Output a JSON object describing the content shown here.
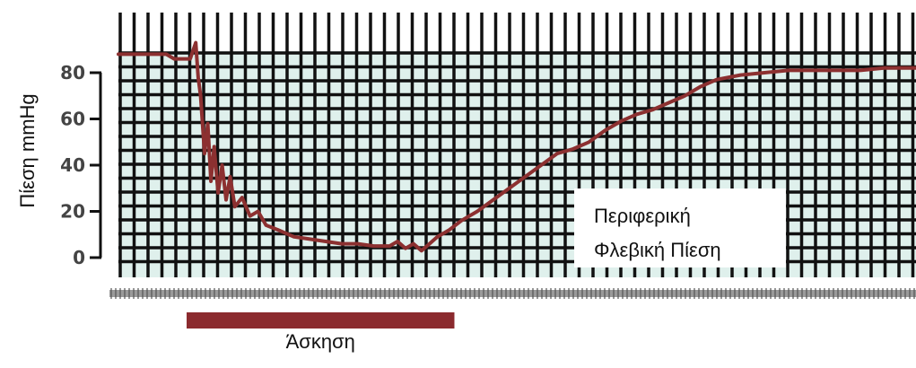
{
  "chart_data": {
    "type": "line",
    "ylabel": "Πίεση mmHg",
    "yticks": [
      0,
      20,
      40,
      60,
      80
    ],
    "ylim": [
      -8,
      98
    ],
    "xlim": [
      0,
      100
    ],
    "grid": true,
    "colors": {
      "grid_bg": "#dff0ec",
      "grid_line": "#111111",
      "series": "#8c3030",
      "exercise_bar": "#8b2a2e"
    },
    "series": [
      {
        "name": "Περιφερική Φλεβική Πίεση",
        "legend_lines": [
          "Περιφερική",
          "Φλεβική Πίεση"
        ],
        "x": [
          0,
          6,
          7,
          9,
          9.7,
          10,
          10.3,
          10.8,
          11.2,
          11.6,
          12,
          12.5,
          13,
          13.5,
          14,
          14.6,
          15.5,
          16.5,
          17.5,
          18.5,
          20,
          22,
          24,
          26,
          28,
          30,
          32,
          34,
          35,
          36,
          37,
          38,
          39,
          40,
          41.5,
          43,
          45,
          47,
          49,
          51,
          53,
          55,
          57,
          59,
          61,
          63,
          65,
          67,
          69,
          71,
          73,
          75,
          78,
          81,
          84,
          87,
          90,
          93,
          96,
          100
        ],
        "y": [
          88,
          88,
          86,
          86,
          93,
          78,
          70,
          45,
          58,
          33,
          48,
          28,
          40,
          25,
          35,
          22,
          26,
          18,
          20,
          14,
          12,
          9,
          8,
          7,
          6,
          6,
          5,
          5,
          7,
          4,
          6,
          3,
          6,
          9,
          12,
          16,
          20,
          25,
          30,
          35,
          40,
          45,
          47,
          50,
          55,
          59,
          62,
          64,
          67,
          70,
          74,
          77,
          79,
          80,
          81,
          81,
          81,
          81,
          82,
          82
        ]
      }
    ],
    "annotations": [
      {
        "label": "Άσκηση",
        "x_start": 9,
        "x_end": 41
      }
    ]
  }
}
